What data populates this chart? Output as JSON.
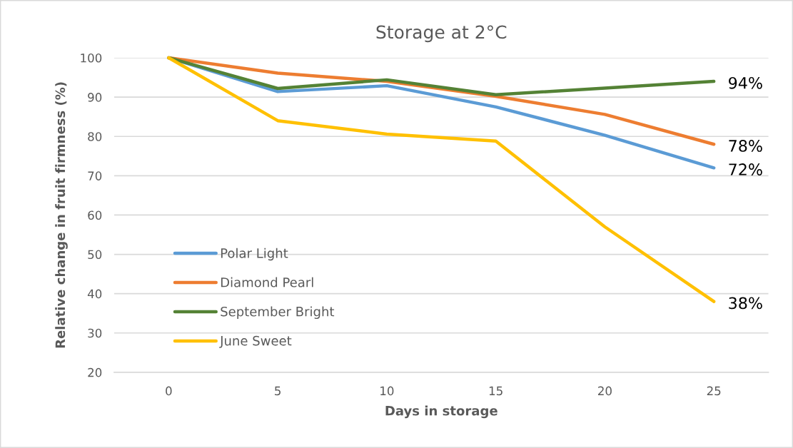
{
  "chart_data": {
    "type": "line",
    "title": "Storage at 2°C",
    "xlabel": "Days in storage",
    "ylabel": "Relative change in fruit firmness (%)",
    "categories": [
      "0",
      "5",
      "10",
      "15",
      "20",
      "25"
    ],
    "series": [
      {
        "name": "Polar Light",
        "color": "#5b9bd5",
        "values": [
          100,
          91.4,
          92.9,
          87.5,
          80.3,
          72
        ],
        "value_labels": [
          null,
          null,
          null,
          null,
          null,
          "72%"
        ]
      },
      {
        "name": "Diamond Pearl",
        "color": "#ed7d31",
        "values": [
          100,
          96.1,
          94,
          90.2,
          85.6,
          78
        ],
        "value_labels": [
          null,
          null,
          null,
          null,
          null,
          "78%"
        ]
      },
      {
        "name": "September Bright",
        "color": "#548235",
        "values": [
          100,
          92.2,
          94.4,
          90.6,
          92.3,
          94
        ],
        "value_labels": [
          null,
          null,
          null,
          null,
          null,
          "94%"
        ]
      },
      {
        "name": "June Sweet",
        "color": "#ffc000",
        "values": [
          100,
          84,
          80.6,
          78.8,
          57,
          38
        ],
        "value_labels": [
          null,
          null,
          null,
          null,
          null,
          "38%"
        ]
      }
    ],
    "ylim": [
      20,
      100
    ],
    "yticks": [
      20,
      30,
      40,
      50,
      60,
      70,
      80,
      90,
      100
    ],
    "grid": "y",
    "legend": "bottom left",
    "marker": "none",
    "line_style": "solid"
  }
}
